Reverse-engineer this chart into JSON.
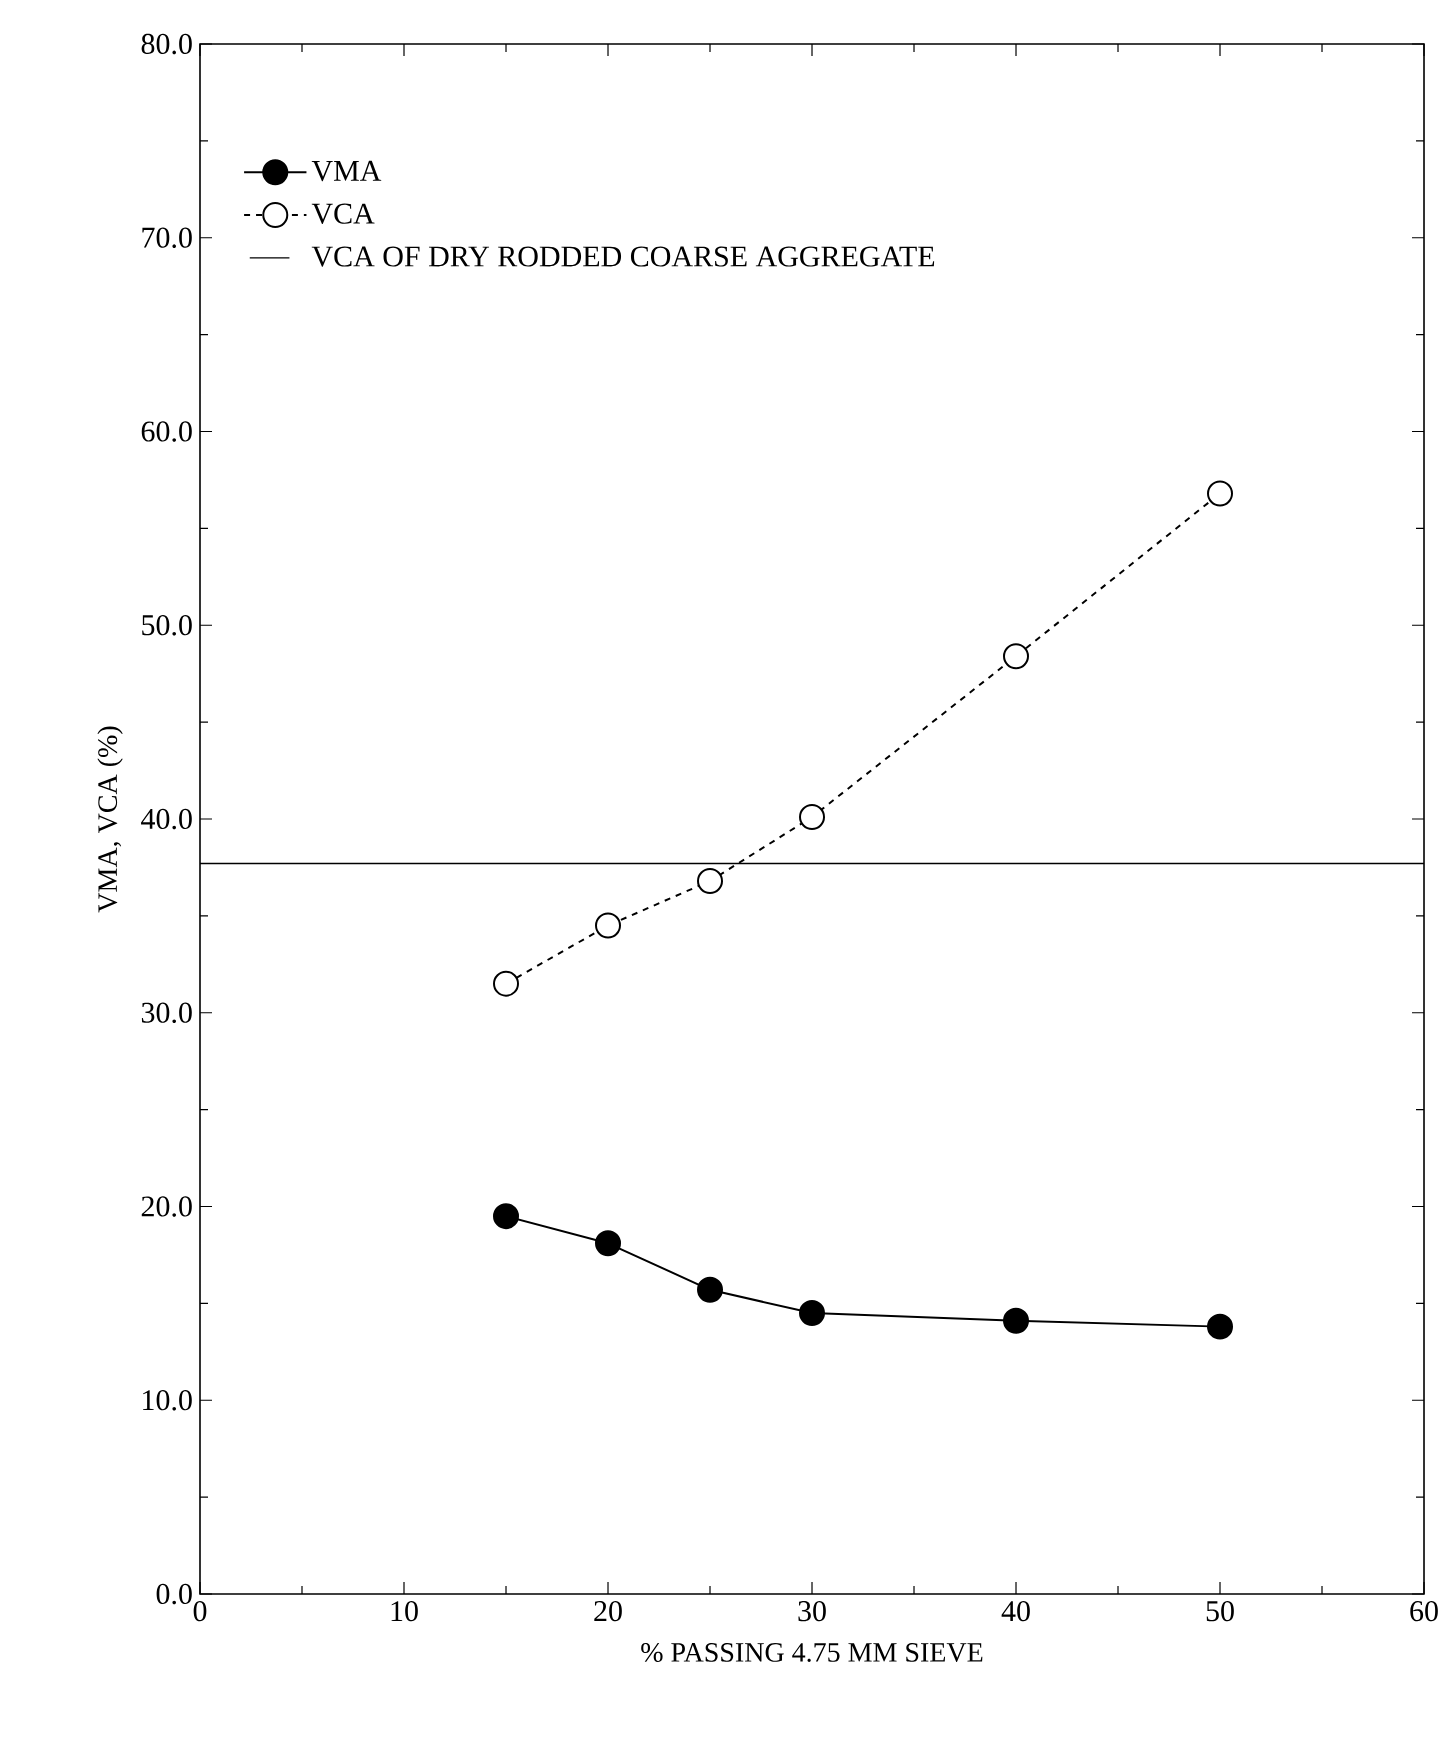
{
  "chart_data": {
    "type": "line",
    "xlabel": "% PASSING 4.75 MM SIEVE",
    "ylabel": "VMA, VCA (%)",
    "x": [
      15,
      20,
      25,
      30,
      40,
      50
    ],
    "series": [
      {
        "name": "VMA",
        "color": "#000000",
        "line_style": "solid",
        "values": [
          19.5,
          18.1,
          15.7,
          14.5,
          14.1,
          13.8
        ]
      },
      {
        "name": "VCA",
        "color": "#000000",
        "line_style": "dashed",
        "values": [
          31.5,
          34.5,
          36.8,
          40.1,
          48.4,
          56.8
        ]
      }
    ],
    "ref_lines": [
      {
        "axis": "y",
        "value": 37.7,
        "label": "VCA OF DRY RODDED COARSE AGGREGATE",
        "color": "#000000",
        "line_style": "solid"
      }
    ],
    "xlim": [
      0,
      60
    ],
    "xticks": [
      0,
      10,
      20,
      30,
      40,
      50,
      60
    ],
    "ylim": [
      0,
      80
    ],
    "yticks": [
      {
        "value": 0,
        "label": "0.0"
      },
      {
        "value": 10,
        "label": "10.0"
      },
      {
        "value": 20,
        "label": "20.0"
      },
      {
        "value": 30,
        "label": "30.0"
      },
      {
        "value": 40,
        "label": "40.0"
      },
      {
        "value": 50,
        "label": "50.0"
      },
      {
        "value": 60,
        "label": "60.0"
      },
      {
        "value": 70,
        "label": "70.0"
      },
      {
        "value": 80,
        "label": "80.0"
      }
    ],
    "grid": false,
    "legend": "top left",
    "marker": "circle"
  }
}
